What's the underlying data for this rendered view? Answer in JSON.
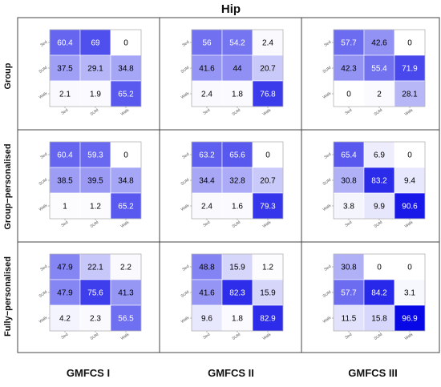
{
  "title": "Hip",
  "column_labels": [
    "GMFCS I",
    "GMFCS II",
    "GMFCS III"
  ],
  "row_labels": [
    "Group",
    "Group−personalised",
    "Fully−personalised"
  ],
  "chart_data": {
    "type": "heatmap",
    "title": "Hip",
    "categories": [
      "Sed",
      "SUM",
      "Walk"
    ],
    "color_low": "#ffffff",
    "color_high": "#0000e6",
    "value_range": [
      0,
      100
    ],
    "panels": [
      {
        "row": "Group",
        "col": "GMFCS I",
        "matrix": [
          [
            60.4,
            69,
            0
          ],
          [
            37.5,
            29.1,
            34.8
          ],
          [
            2.1,
            1.9,
            65.2
          ]
        ]
      },
      {
        "row": "Group",
        "col": "GMFCS II",
        "matrix": [
          [
            56,
            54.2,
            2.4
          ],
          [
            41.6,
            44,
            20.7
          ],
          [
            2.4,
            1.8,
            76.8
          ]
        ]
      },
      {
        "row": "Group",
        "col": "GMFCS III",
        "matrix": [
          [
            57.7,
            42.6,
            0
          ],
          [
            42.3,
            55.4,
            71.9
          ],
          [
            0,
            2,
            28.1
          ]
        ]
      },
      {
        "row": "Group−personalised",
        "col": "GMFCS I",
        "matrix": [
          [
            60.4,
            59.3,
            0
          ],
          [
            38.5,
            39.5,
            34.8
          ],
          [
            1,
            1.2,
            65.2
          ]
        ]
      },
      {
        "row": "Group−personalised",
        "col": "GMFCS II",
        "matrix": [
          [
            63.2,
            65.6,
            0
          ],
          [
            34.4,
            32.8,
            20.7
          ],
          [
            2.4,
            1.6,
            79.3
          ]
        ]
      },
      {
        "row": "Group−personalised",
        "col": "GMFCS III",
        "matrix": [
          [
            65.4,
            6.9,
            0
          ],
          [
            30.8,
            83.2,
            9.4
          ],
          [
            3.8,
            9.9,
            90.6
          ]
        ]
      },
      {
        "row": "Fully−personalised",
        "col": "GMFCS I",
        "matrix": [
          [
            47.9,
            22.1,
            2.2
          ],
          [
            47.9,
            75.6,
            41.3
          ],
          [
            4.2,
            2.3,
            56.5
          ]
        ]
      },
      {
        "row": "Fully−personalised",
        "col": "GMFCS II",
        "matrix": [
          [
            48.8,
            15.9,
            1.2
          ],
          [
            41.6,
            82.3,
            15.9
          ],
          [
            9.6,
            1.8,
            82.9
          ]
        ]
      },
      {
        "row": "Fully−personalised",
        "col": "GMFCS III",
        "matrix": [
          [
            30.8,
            0,
            0
          ],
          [
            57.7,
            84.2,
            3.1
          ],
          [
            11.5,
            15.8,
            96.9
          ]
        ]
      }
    ]
  }
}
